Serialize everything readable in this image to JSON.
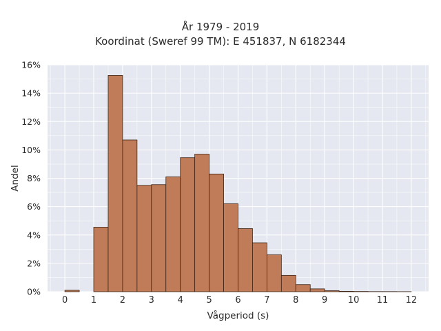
{
  "chart_data": {
    "type": "bar",
    "title_lines": [
      "År 1979 - 2019",
      "Koordinat (Sweref 99 TM): E 451837, N 6182344"
    ],
    "xlabel": "Vågperiod (s)",
    "ylabel": "Andel",
    "xlim": [
      -0.6,
      12.6
    ],
    "ylim": [
      0,
      16
    ],
    "x_ticks": [
      0,
      1,
      2,
      3,
      4,
      5,
      6,
      7,
      8,
      9,
      10,
      11,
      12
    ],
    "x_tick_labels": [
      "0",
      "1",
      "2",
      "3",
      "4",
      "5",
      "6",
      "7",
      "8",
      "9",
      "10",
      "11",
      "12"
    ],
    "y_ticks": [
      0,
      2,
      4,
      6,
      8,
      10,
      12,
      14,
      16
    ],
    "y_tick_labels": [
      "0%",
      "2%",
      "4%",
      "6%",
      "8%",
      "10%",
      "12%",
      "14%",
      "16%"
    ],
    "bin_width": 0.5,
    "bin_starts": [
      0,
      1,
      1.5,
      2,
      2.5,
      3,
      3.5,
      4,
      4.5,
      5,
      5.5,
      6,
      6.5,
      7,
      7.5,
      8,
      8.5,
      9,
      9.5,
      10,
      10.5,
      11,
      11.5
    ],
    "values": [
      0.1,
      4.55,
      15.25,
      10.7,
      7.5,
      7.55,
      8.1,
      9.45,
      9.7,
      8.3,
      6.2,
      4.45,
      3.45,
      2.6,
      1.15,
      0.5,
      0.2,
      0.07,
      0.03,
      0.02,
      0.01,
      0.01,
      0.005
    ],
    "grid": true,
    "colors": {
      "bar_fill": "#c07c58",
      "bar_edge": "#3d2314",
      "plot_bg": "#e5e8f0",
      "grid": "#ffffff"
    }
  }
}
